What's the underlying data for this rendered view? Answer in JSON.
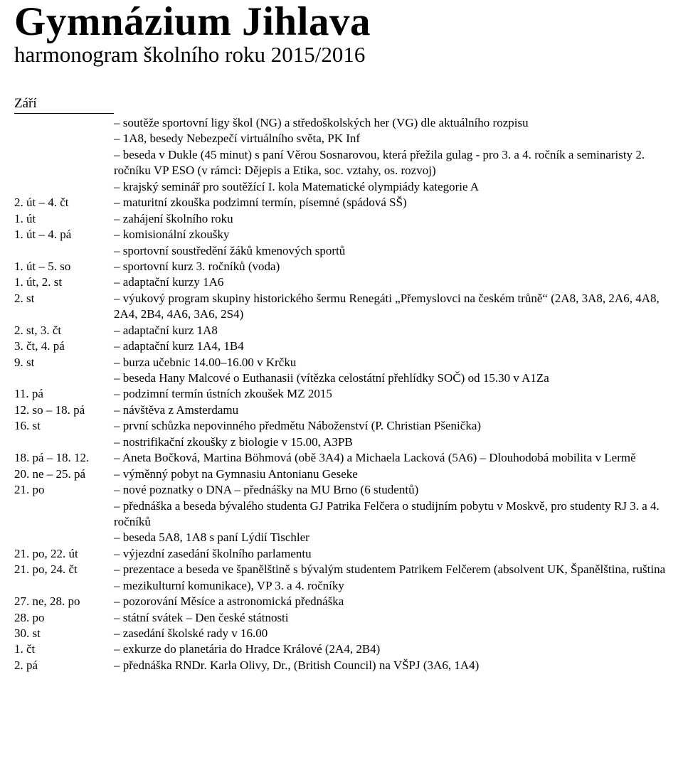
{
  "header": {
    "title": "Gymnázium Jihlava",
    "subtitle": "harmonogram školního roku 2015/2016"
  },
  "month": "Září",
  "rows": [
    {
      "date": "",
      "text": "soutěže sportovní ligy škol (NG) a středoškolských her (VG) dle aktuálního rozpisu"
    },
    {
      "date": "",
      "text": "1A8, besedy Nebezpečí virtuálního světa, PK Inf"
    },
    {
      "date": "",
      "text": "beseda v Dukle (45 minut) s paní Věrou Sosnarovou, která přežila gulag - pro 3. a 4. ročník a seminaristy 2. ročníku VP ESO (v rámci: Dějepis a Etika, soc. vztahy, os. rozvoj)"
    },
    {
      "date": "",
      "text": "krajský seminář pro soutěžící I. kola Matematické olympiády kategorie A"
    },
    {
      "date": "2. út – 4. čt",
      "text": "maturitní zkouška podzimní termín, písemné (spádová SŠ)"
    },
    {
      "date": "1. út",
      "text": "zahájení školního roku"
    },
    {
      "date": "1. út – 4. pá",
      "text": "komisionální zkoušky"
    },
    {
      "date": "",
      "text": "sportovní soustředění žáků kmenových sportů"
    },
    {
      "date": "1. út – 5. so",
      "text": "sportovní kurz 3. ročníků (voda)"
    },
    {
      "date": "1. út, 2. st",
      "text": "adaptační kurzy 1A6"
    },
    {
      "date": "2. st",
      "text": "výukový program skupiny historického šermu Renegáti „Přemyslovci na českém trůně“ (2A8, 3A8, 2A6, 4A8, 2A4, 2B4, 4A6, 3A6, 2S4)"
    },
    {
      "date": "2. st, 3. čt",
      "text": "adaptační kurz 1A8"
    },
    {
      "date": "3. čt, 4. pá",
      "text": "adaptační kurz 1A4, 1B4"
    },
    {
      "date": "9. st",
      "text": "burza učebnic 14.00–16.00 v Krčku"
    },
    {
      "date": "",
      "text": "beseda Hany Malcové o Euthanasii (vítězka celostátní přehlídky SOČ) od 15.30 v A1Za"
    },
    {
      "date": "11. pá",
      "text": "podzimní termín ústních zkoušek MZ 2015"
    },
    {
      "date": "12. so – 18. pá",
      "text": "návštěva z Amsterdamu"
    },
    {
      "date": "16. st",
      "text": "první schůzka nepovinného předmětu Náboženství (P. Christian Pšenička)"
    },
    {
      "date": "",
      "text": "nostrifikační zkoušky z biologie v 15.00, A3PB"
    },
    {
      "date": "18. pá – 18. 12.",
      "text": "Aneta Bočková, Martina Böhmová (obě 3A4) a Michaela Lacková (5A6) – Dlouhodobá mobilita v Lermě"
    },
    {
      "date": "20. ne – 25. pá",
      "text": "výměnný pobyt na Gymnasiu Antonianu Geseke"
    },
    {
      "date": "21. po",
      "text": "nové poznatky o DNA – přednášky na MU Brno (6 studentů)"
    },
    {
      "date": "",
      "text": "přednáška a beseda bývalého studenta GJ Patrika Felčera o studijním pobytu v Moskvě, pro studenty RJ 3. a 4. ročníků"
    },
    {
      "date": "",
      "text": "beseda 5A8, 1A8 s paní Lýdií Tischler"
    },
    {
      "date": "21. po, 22. út",
      "text": "výjezdní zasedání školního parlamentu"
    },
    {
      "date": "21. po, 24. čt",
      "text": "prezentace a beseda ve španělštině s bývalým studentem Patrikem Felčerem (absolvent UK, Španělština, ruština – mezikulturní komunikace), VP 3. a 4. ročníky"
    },
    {
      "date": "27. ne, 28. po",
      "text": "pozorování Měsíce a astronomická přednáška"
    },
    {
      "date": "28. po",
      "text": "státní svátek – Den české státnosti"
    },
    {
      "date": "30. st",
      "text": "zasedání školské rady v 16.00"
    },
    {
      "date": "1. čt",
      "text": "exkurze do planetária do Hradce Králové (2A4, 2B4)"
    },
    {
      "date": "2. pá",
      "text": "přednáška RNDr. Karla Olivy, Dr., (British Council) na VŠPJ (3A6, 1A4)"
    }
  ]
}
